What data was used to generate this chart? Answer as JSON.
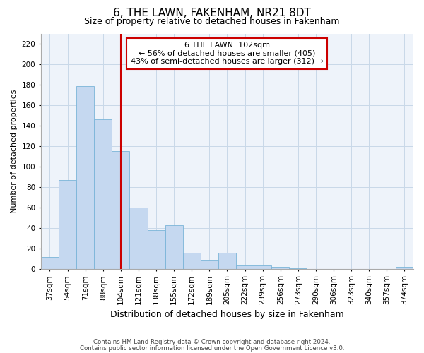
{
  "title": "6, THE LAWN, FAKENHAM, NR21 8DT",
  "subtitle": "Size of property relative to detached houses in Fakenham",
  "xlabel": "Distribution of detached houses by size in Fakenham",
  "ylabel": "Number of detached properties",
  "categories": [
    "37sqm",
    "54sqm",
    "71sqm",
    "88sqm",
    "104sqm",
    "121sqm",
    "138sqm",
    "155sqm",
    "172sqm",
    "189sqm",
    "205sqm",
    "222sqm",
    "239sqm",
    "256sqm",
    "273sqm",
    "290sqm",
    "306sqm",
    "323sqm",
    "340sqm",
    "357sqm",
    "374sqm"
  ],
  "values": [
    12,
    87,
    179,
    146,
    115,
    60,
    38,
    43,
    16,
    9,
    16,
    4,
    4,
    2,
    1,
    0,
    0,
    0,
    0,
    0,
    2
  ],
  "bar_color": "#c5d8f0",
  "bar_edge_color": "#7ab4d8",
  "vline_x": 4,
  "vline_color": "#cc0000",
  "annotation_text": "6 THE LAWN: 102sqm\n← 56% of detached houses are smaller (405)\n43% of semi-detached houses are larger (312) →",
  "annotation_box_color": "white",
  "annotation_box_edge": "#cc0000",
  "ylim": [
    0,
    230
  ],
  "yticks": [
    0,
    20,
    40,
    60,
    80,
    100,
    120,
    140,
    160,
    180,
    200,
    220
  ],
  "footer1": "Contains HM Land Registry data © Crown copyright and database right 2024.",
  "footer2": "Contains public sector information licensed under the Open Government Licence v3.0.",
  "grid_color": "#c8d8e8",
  "background_color": "#eef3fa",
  "title_fontsize": 11,
  "subtitle_fontsize": 9,
  "ylabel_fontsize": 8,
  "xlabel_fontsize": 9,
  "tick_fontsize": 7.5,
  "footer_fontsize": 6.2,
  "ann_fontsize": 8
}
